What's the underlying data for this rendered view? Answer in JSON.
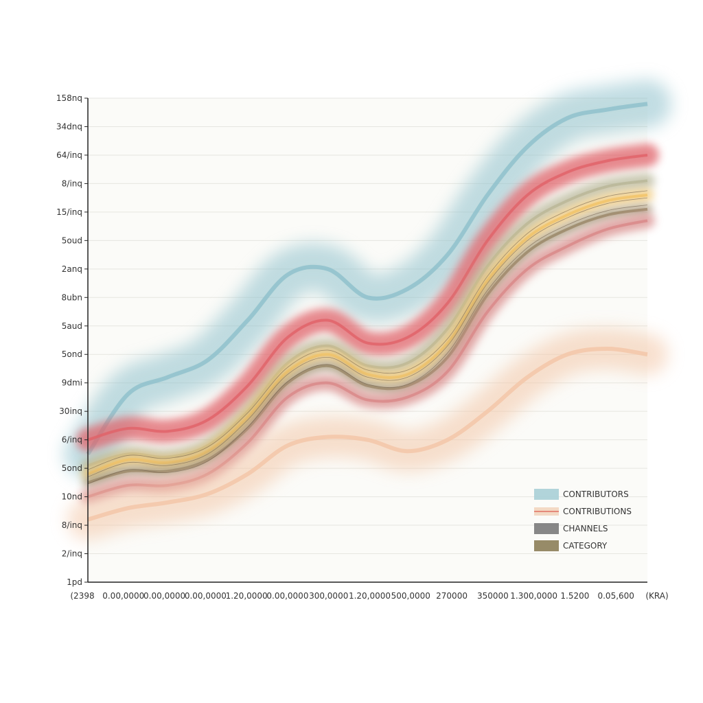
{
  "chart_data": {
    "type": "area",
    "title": "",
    "xlabel": "",
    "ylabel": "",
    "grid": true,
    "legend_placement": "bottom-right",
    "y_tick_labels": [
      "1pd",
      "2/inq",
      "8/inq",
      "10nd",
      "5ond",
      "6/inq",
      "30inq",
      "9dmi",
      "5ond",
      "5aud",
      "8ubn",
      "2anq",
      "5oud",
      "15/inq",
      "8/inq",
      "64/inq",
      "34dnq",
      "158nq"
    ],
    "x_tick_labels": [
      "(2398",
      "0.00,0000",
      "0.00,0000",
      "0.00,0000",
      "1.20,0000",
      "0.00,0000",
      "300,0000",
      "1.20,0000",
      "500,0000",
      "270000",
      "350000",
      "1.300,0000",
      "1.5200",
      "0.05,600",
      "(KRA)"
    ],
    "x": [
      0,
      1,
      2,
      3,
      4,
      5,
      6,
      7,
      8,
      9,
      10,
      11,
      12,
      13,
      14
    ],
    "series": [
      {
        "name": "",
        "color": "#8fc1cc",
        "values": [
          4.5,
          6.6,
          7.2,
          7.8,
          9.2,
          10.8,
          11.0,
          10.0,
          10.3,
          11.5,
          13.6,
          15.3,
          16.3,
          16.6,
          16.8
        ]
      },
      {
        "name": "",
        "color": "#e0646a",
        "values": [
          5.0,
          5.4,
          5.3,
          5.7,
          6.9,
          8.6,
          9.2,
          8.4,
          8.6,
          9.8,
          12.0,
          13.6,
          14.4,
          14.8,
          15.0
        ]
      },
      {
        "name": "",
        "color": "#b9b79a",
        "values": [
          4.1,
          4.5,
          4.4,
          4.8,
          6.0,
          7.7,
          8.3,
          7.6,
          7.7,
          8.9,
          11.1,
          12.6,
          13.4,
          13.9,
          14.1
        ]
      },
      {
        "name": "",
        "color": "#f2c46a",
        "values": [
          3.8,
          4.3,
          4.2,
          4.6,
          5.8,
          7.4,
          8.0,
          7.3,
          7.3,
          8.4,
          10.6,
          12.1,
          12.9,
          13.4,
          13.6
        ]
      },
      {
        "name": "",
        "color": "#9a8a6a",
        "values": [
          3.5,
          3.9,
          3.9,
          4.3,
          5.4,
          7.0,
          7.6,
          6.9,
          6.9,
          7.9,
          10.1,
          11.6,
          12.4,
          12.9,
          13.1
        ]
      },
      {
        "name": "",
        "color": "#d98a8a",
        "values": [
          3.0,
          3.4,
          3.4,
          3.8,
          4.9,
          6.5,
          7.0,
          6.4,
          6.5,
          7.4,
          9.5,
          11.0,
          11.8,
          12.4,
          12.7
        ]
      },
      {
        "name": "",
        "color": "#f3c7a8",
        "values": [
          2.2,
          2.6,
          2.8,
          3.1,
          3.8,
          4.8,
          5.1,
          5.0,
          4.6,
          5.0,
          6.0,
          7.2,
          8.0,
          8.2,
          8.0
        ]
      }
    ],
    "legend": [
      {
        "label": "CONTRIBUTORS",
        "color": "#a9cfd6"
      },
      {
        "label": "CONTRIBUTIONS",
        "color": "#e58a7a"
      },
      {
        "label": "CHANNELS",
        "color": "#7a7a7a"
      },
      {
        "label": "CATEGORY",
        "color": "#8c7e58"
      }
    ]
  }
}
